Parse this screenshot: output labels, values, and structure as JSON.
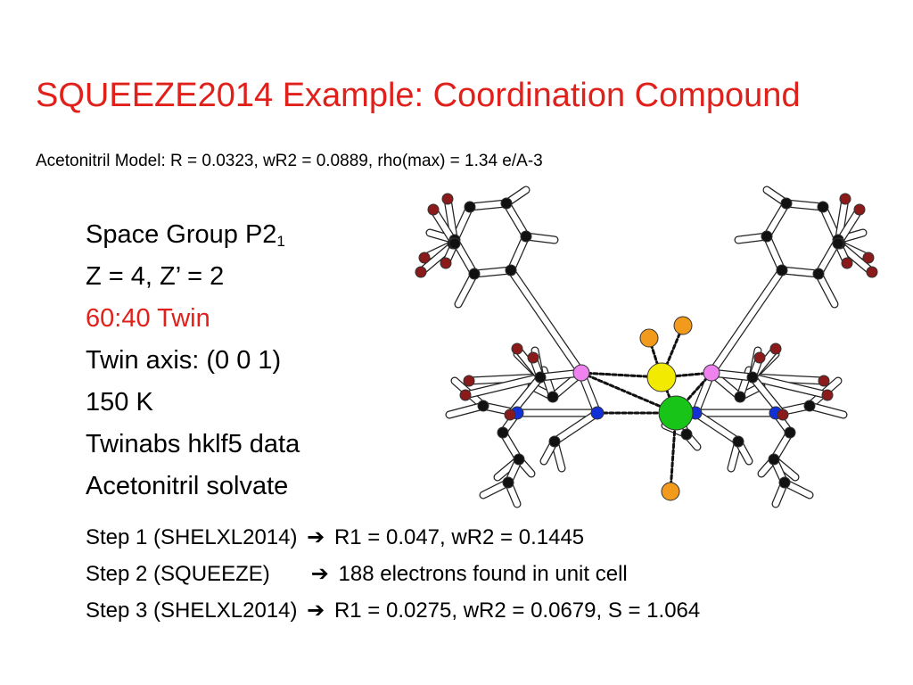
{
  "slide": {
    "title": "SQUEEZE2014 Example: Coordination Compound",
    "subtitle": "Acetonitril Model: R = 0.0323, wR2 = 0.0889,  rho(max) = 1.34 e/A-3",
    "colors": {
      "title": "#e0201b",
      "accent": "#e0201b"
    }
  },
  "bullets": {
    "space_group_prefix": "Space Group P2",
    "space_group_sub": "1",
    "z_values": "Z = 4, Z’ = 2",
    "twin_ratio": "60:40 Twin",
    "twin_axis": "Twin axis: (0 0 1)",
    "temperature": "150 K",
    "data_type": "Twinabs hklf5 data",
    "solvate": "Acetonitril solvate"
  },
  "steps": [
    {
      "label": "Step 1 (SHELXL2014)",
      "arrow": "➔",
      "result": "R1 = 0.047, wR2 = 0.1445"
    },
    {
      "label": "Step 2 (SQUEEZE)",
      "arrow": "➔",
      "result": "188 electrons found  in unit cell"
    },
    {
      "label": "Step 3 (SHELXL2014)",
      "arrow": "➔",
      "result": "R1 = 0.0275, wR2 = 0.0679, S = 1.064"
    }
  ],
  "figure": {
    "subject": "molecular-structure",
    "atom_colors": {
      "carbon": "#111111",
      "oxygen": "#8b1a1a",
      "nitrogen": "#1230d8",
      "phosphorus": "#ee82ee",
      "metal_yellow": "#f2ea00",
      "metal_green": "#18c418",
      "halide": "#f29a1c"
    }
  }
}
